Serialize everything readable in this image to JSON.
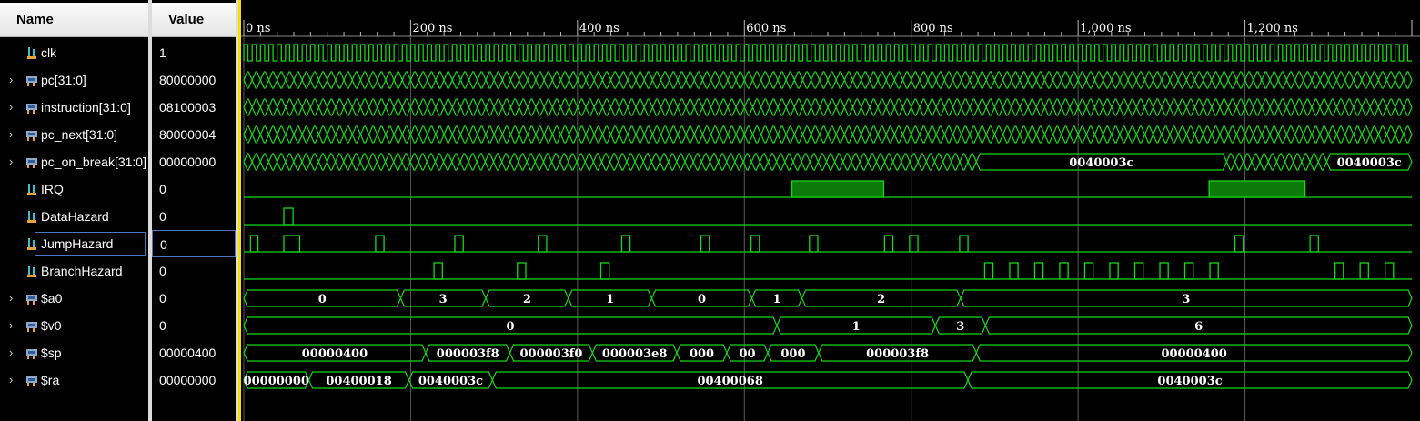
{
  "columns": {
    "name": "Name",
    "value": "Value"
  },
  "signals": [
    {
      "name": "clk",
      "value": "1",
      "kind": "bit",
      "expandable": false
    },
    {
      "name": "pc[31:0]",
      "value": "80000000",
      "kind": "bus",
      "expandable": true
    },
    {
      "name": "instruction[31:0]",
      "value": "08100003",
      "kind": "bus",
      "expandable": true
    },
    {
      "name": "pc_next[31:0]",
      "value": "80000004",
      "kind": "bus",
      "expandable": true
    },
    {
      "name": "pc_on_break[31:0]",
      "value": "00000000",
      "kind": "bus",
      "expandable": true
    },
    {
      "name": "IRQ",
      "value": "0",
      "kind": "bit",
      "expandable": false
    },
    {
      "name": "DataHazard",
      "value": "0",
      "kind": "bit",
      "expandable": false
    },
    {
      "name": "JumpHazard",
      "value": "0",
      "kind": "bit",
      "expandable": false,
      "selected": true
    },
    {
      "name": "BranchHazard",
      "value": "0",
      "kind": "bit",
      "expandable": false
    },
    {
      "name": "$a0",
      "value": "0",
      "kind": "bus",
      "expandable": true
    },
    {
      "name": "$v0",
      "value": "0",
      "kind": "bus",
      "expandable": true
    },
    {
      "name": "$sp",
      "value": "00000400",
      "kind": "bus",
      "expandable": true
    },
    {
      "name": "$ra",
      "value": "00000000",
      "kind": "bus",
      "expandable": true
    }
  ],
  "time_axis": {
    "unit": "ns",
    "range": [
      0,
      1400
    ],
    "major_ticks": [
      {
        "t": 0,
        "label": "0 ns"
      },
      {
        "t": 200,
        "label": "200 ns"
      },
      {
        "t": 400,
        "label": "400 ns"
      },
      {
        "t": 600,
        "label": "600 ns"
      },
      {
        "t": 800,
        "label": "800 ns"
      },
      {
        "t": 1000,
        "label": "1,000 ns"
      },
      {
        "t": 1200,
        "label": "1,200 ns"
      }
    ]
  },
  "cursor_time_ns": 0,
  "colors": {
    "wave": "#14d814",
    "grid": "#5a5a5a",
    "cursor": "#f5e000",
    "text": "#ffffff",
    "bg": "#000000"
  },
  "bit_waves": {
    "IRQ": [
      [
        657,
        767
      ],
      [
        1157,
        1272
      ]
    ],
    "DataHazard": [
      [
        48,
        59
      ]
    ],
    "JumpHazard": [
      [
        8,
        17
      ],
      [
        48,
        67
      ],
      [
        158,
        168
      ],
      [
        253,
        263
      ],
      [
        353,
        363
      ],
      [
        453,
        463
      ],
      [
        548,
        558
      ],
      [
        608,
        618
      ],
      [
        678,
        688
      ],
      [
        768,
        778
      ],
      [
        798,
        808
      ],
      [
        858,
        868
      ],
      [
        1188,
        1198
      ],
      [
        1278,
        1288
      ]
    ],
    "BranchHazard": [
      [
        228,
        238
      ],
      [
        328,
        338
      ],
      [
        428,
        438
      ],
      [
        888,
        898
      ],
      [
        918,
        928
      ],
      [
        948,
        958
      ],
      [
        978,
        988
      ],
      [
        1008,
        1018
      ],
      [
        1038,
        1048
      ],
      [
        1068,
        1078
      ],
      [
        1098,
        1108
      ],
      [
        1128,
        1138
      ],
      [
        1158,
        1168
      ],
      [
        1308,
        1318
      ],
      [
        1338,
        1348
      ],
      [
        1368,
        1378
      ]
    ]
  },
  "bus_segments": {
    "$a0": [
      {
        "start": 0,
        "end": 188,
        "label": "0"
      },
      {
        "start": 188,
        "end": 290,
        "label": "3"
      },
      {
        "start": 290,
        "end": 389,
        "label": "2"
      },
      {
        "start": 389,
        "end": 489,
        "label": "1"
      },
      {
        "start": 489,
        "end": 609,
        "label": "0"
      },
      {
        "start": 609,
        "end": 669,
        "label": "1"
      },
      {
        "start": 669,
        "end": 859,
        "label": "2"
      },
      {
        "start": 859,
        "end": 1400,
        "label": "3"
      }
    ],
    "$v0": [
      {
        "start": 0,
        "end": 639,
        "label": "0"
      },
      {
        "start": 639,
        "end": 829,
        "label": "1"
      },
      {
        "start": 829,
        "end": 889,
        "label": "3"
      },
      {
        "start": 889,
        "end": 1400,
        "label": "6"
      }
    ],
    "$sp": [
      {
        "start": 0,
        "end": 218,
        "label": "00000400"
      },
      {
        "start": 218,
        "end": 319,
        "label": "000003f8"
      },
      {
        "start": 319,
        "end": 418,
        "label": "000003f0"
      },
      {
        "start": 418,
        "end": 519,
        "label": "000003e8"
      },
      {
        "start": 519,
        "end": 579,
        "label": "000"
      },
      {
        "start": 579,
        "end": 628,
        "label": "00"
      },
      {
        "start": 628,
        "end": 689,
        "label": "000"
      },
      {
        "start": 689,
        "end": 878,
        "label": "000003f8"
      },
      {
        "start": 878,
        "end": 1400,
        "label": "00000400"
      }
    ],
    "$ra": [
      {
        "start": 0,
        "end": 78,
        "label": "00000000"
      },
      {
        "start": 78,
        "end": 198,
        "label": "00400018"
      },
      {
        "start": 198,
        "end": 298,
        "label": "0040003c"
      },
      {
        "start": 298,
        "end": 868,
        "label": "00400068"
      },
      {
        "start": 868,
        "end": 1400,
        "label": "0040003c"
      }
    ],
    "pc_on_break[31:0]": [
      {
        "start": 878,
        "end": 1178,
        "label": "0040003c"
      },
      {
        "start": 1298,
        "end": 1400,
        "label": "0040003c"
      }
    ]
  }
}
